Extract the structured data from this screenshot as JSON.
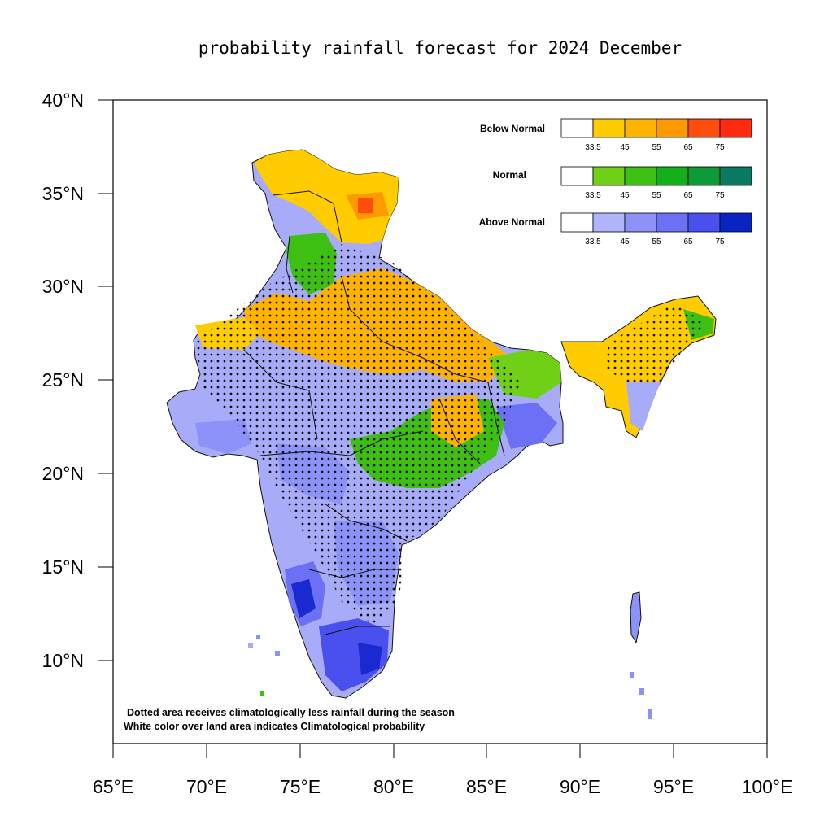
{
  "title": "probability rainfall forecast for 2024 December",
  "axes": {
    "y_ticks": [
      "40°N",
      "35°N",
      "30°N",
      "25°N",
      "20°N",
      "15°N",
      "10°N"
    ],
    "x_ticks": [
      "65°E",
      "70°E",
      "75°E",
      "80°E",
      "85°E",
      "90°E",
      "95°E",
      "100°E"
    ],
    "lat_range": [
      5,
      40
    ],
    "lon_range": [
      65,
      100
    ]
  },
  "legend": {
    "categories": [
      {
        "label": "Below Normal",
        "colors": [
          "#ffffff",
          "#ffcc00",
          "#ffb300",
          "#ff9900",
          "#ff4d0d",
          "#ff2a0f"
        ]
      },
      {
        "label": "Normal",
        "colors": [
          "#ffffff",
          "#6fd016",
          "#3dbf14",
          "#14b01c",
          "#0e9a36",
          "#0a7a63"
        ]
      },
      {
        "label": "Above Normal",
        "colors": [
          "#ffffff",
          "#b0b4fb",
          "#8d92f8",
          "#6b70f4",
          "#4a50ee",
          "#0a24c4"
        ]
      }
    ],
    "tick_labels": [
      "33.5",
      "45",
      "55",
      "65",
      "75"
    ]
  },
  "notes": [
    "Dotted area receives climatologically less rainfall during the season",
    "White color over land area indicates Climatological probability"
  ]
}
